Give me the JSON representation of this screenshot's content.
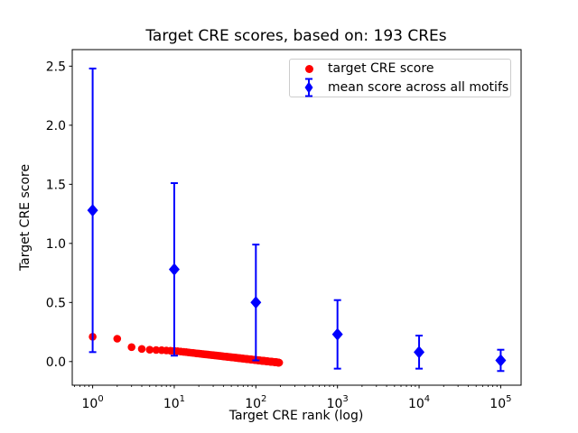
{
  "figure": {
    "title": "Target CRE scores, based on: 193 CREs",
    "xlabel": "Target CRE rank (log)",
    "ylabel": "Target CRE score"
  },
  "colors": {
    "red": "#ff0000",
    "blue": "#0000ff",
    "axis": "#000000",
    "legend_border": "#cccccc",
    "background": "#ffffff"
  },
  "legend": {
    "position": "upper right",
    "items": [
      {
        "label": "target CRE score",
        "marker": "red-circle"
      },
      {
        "label": "mean score across all motifs",
        "marker": "blue-diamond-errorbar"
      }
    ]
  },
  "chart_data": {
    "type": "scatter",
    "title": "Target CRE scores, based on: 193 CREs",
    "xlabel": "Target CRE rank (log)",
    "ylabel": "Target CRE score",
    "x_scale": "log",
    "xlim_log10": [
      -0.25,
      5.25
    ],
    "ylim": [
      -0.2,
      2.64
    ],
    "x_tick_exponents": [
      0,
      1,
      2,
      3,
      4,
      5
    ],
    "y_ticks": [
      {
        "value": 0.0,
        "label": "0.0"
      },
      {
        "value": 0.5,
        "label": "0.5"
      },
      {
        "value": 1.0,
        "label": "1.0"
      },
      {
        "value": 1.5,
        "label": "1.5"
      },
      {
        "value": 2.0,
        "label": "2.0"
      },
      {
        "value": 2.5,
        "label": "2.5"
      }
    ],
    "grid": false,
    "legend_position": "upper right",
    "series": [
      {
        "name": "target CRE score",
        "marker": "circle",
        "color": "#ff0000",
        "x_rule": "rank = index + 1 (ranks 1..193)",
        "values": [
          0.21,
          0.193,
          0.122,
          0.107,
          0.1,
          0.098,
          0.096,
          0.094,
          0.092,
          0.091,
          0.088,
          0.085,
          0.082,
          0.08,
          0.077,
          0.075,
          0.073,
          0.071,
          0.069,
          0.068,
          0.066,
          0.064,
          0.063,
          0.061,
          0.06,
          0.059,
          0.057,
          0.056,
          0.055,
          0.054,
          0.053,
          0.052,
          0.051,
          0.05,
          0.049,
          0.048,
          0.047,
          0.046,
          0.045,
          0.044,
          0.043,
          0.042,
          0.042,
          0.041,
          0.04,
          0.039,
          0.039,
          0.038,
          0.037,
          0.037,
          0.036,
          0.035,
          0.035,
          0.034,
          0.033,
          0.033,
          0.032,
          0.032,
          0.031,
          0.03,
          0.03,
          0.029,
          0.029,
          0.028,
          0.028,
          0.027,
          0.027,
          0.026,
          0.026,
          0.025,
          0.025,
          0.024,
          0.024,
          0.023,
          0.023,
          0.022,
          0.022,
          0.021,
          0.021,
          0.021,
          0.02,
          0.02,
          0.019,
          0.019,
          0.019,
          0.018,
          0.018,
          0.017,
          0.017,
          0.017,
          0.016,
          0.016,
          0.015,
          0.015,
          0.015,
          0.014,
          0.014,
          0.014,
          0.013,
          0.013,
          0.013,
          0.012,
          0.012,
          0.012,
          0.011,
          0.011,
          0.011,
          0.01,
          0.01,
          0.01,
          0.009,
          0.009,
          0.009,
          0.009,
          0.008,
          0.008,
          0.008,
          0.007,
          0.007,
          0.007,
          0.007,
          0.006,
          0.006,
          0.006,
          0.006,
          0.005,
          0.005,
          0.005,
          0.005,
          0.004,
          0.004,
          0.004,
          0.004,
          0.003,
          0.003,
          0.003,
          0.003,
          0.002,
          0.002,
          0.002,
          0.002,
          0.001,
          0.001,
          0.001,
          0.001,
          0.0,
          0.0,
          0.0,
          0.0,
          0.0,
          -0.001,
          -0.001,
          -0.001,
          -0.001,
          -0.002,
          -0.002,
          -0.002,
          -0.002,
          -0.002,
          -0.003,
          -0.003,
          -0.003,
          -0.003,
          -0.003,
          -0.004,
          -0.004,
          -0.004,
          -0.004,
          -0.004,
          -0.005,
          -0.005,
          -0.005,
          -0.005,
          -0.005,
          -0.006,
          -0.006,
          -0.006,
          -0.006,
          -0.006,
          -0.006,
          -0.007,
          -0.007,
          -0.007,
          -0.007,
          -0.007,
          -0.008,
          -0.008,
          -0.008,
          -0.008,
          -0.008,
          -0.008,
          -0.009,
          -0.009
        ]
      },
      {
        "name": "mean score across all motifs",
        "marker": "diamond",
        "color": "#0000ff",
        "x": [
          1,
          10,
          100,
          1000,
          10000,
          100000
        ],
        "values": [
          1.28,
          0.78,
          0.5,
          0.23,
          0.08,
          0.01
        ],
        "yerr": [
          1.2,
          0.73,
          0.49,
          0.29,
          0.14,
          0.09
        ]
      }
    ]
  }
}
